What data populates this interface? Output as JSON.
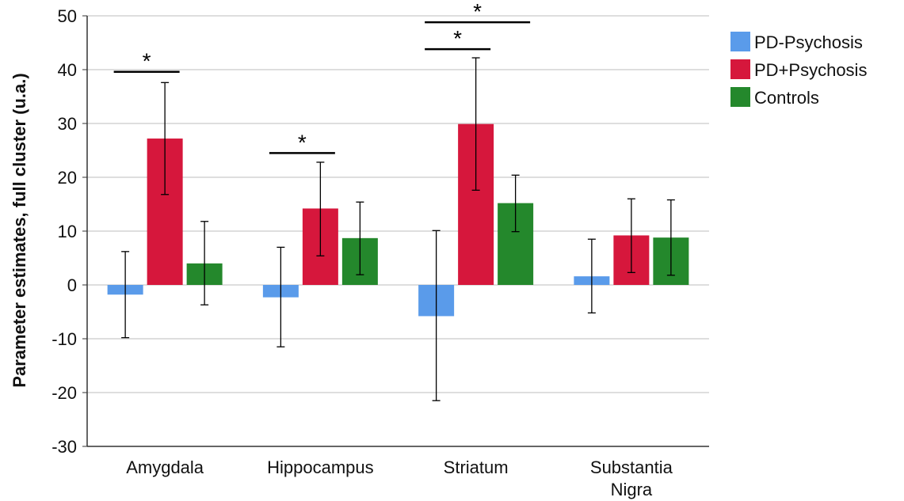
{
  "chart_data": {
    "type": "bar",
    "title": "",
    "xlabel": "",
    "ylabel": "Parameter estimates, full cluster (u.a.)",
    "ylim": [
      -30,
      50
    ],
    "yticks": [
      -30,
      -20,
      -10,
      0,
      10,
      20,
      30,
      40,
      50
    ],
    "grid": true,
    "legend_position": "right",
    "categories": [
      {
        "lines": [
          "Amygdala"
        ]
      },
      {
        "lines": [
          "Hippocampus"
        ]
      },
      {
        "lines": [
          "Striatum"
        ]
      },
      {
        "lines": [
          "Substantia",
          "Nigra"
        ]
      }
    ],
    "series": [
      {
        "name": "PD-Psychosis",
        "color": "#5a9bea",
        "values": [
          -1.8,
          -2.3,
          -5.8,
          1.6
        ],
        "err_low": [
          -9.8,
          -11.5,
          -21.5,
          -5.2
        ],
        "err_high": [
          6.2,
          7.0,
          10.1,
          8.5
        ]
      },
      {
        "name": "PD+Psychosis",
        "color": "#d6173c",
        "values": [
          27.2,
          14.2,
          29.9,
          9.2
        ],
        "err_low": [
          16.8,
          5.4,
          17.6,
          2.3
        ],
        "err_high": [
          37.6,
          22.8,
          42.2,
          16.0
        ]
      },
      {
        "name": "Controls",
        "color": "#24882c",
        "values": [
          4.0,
          8.7,
          15.2,
          8.8
        ],
        "err_low": [
          -3.7,
          1.9,
          9.9,
          1.8
        ],
        "err_high": [
          11.8,
          15.4,
          20.4,
          15.8
        ]
      }
    ],
    "annotations": [
      {
        "text": "*",
        "category": 0,
        "from_series": 0,
        "to_series": 1,
        "y": 39.6
      },
      {
        "text": "*",
        "category": 1,
        "from_series": 0,
        "to_series": 1,
        "y": 24.5
      },
      {
        "text": "*",
        "category": 2,
        "from_series": 0,
        "to_series": 1,
        "y": 43.8
      },
      {
        "text": "*",
        "category": 2,
        "from_series": 0,
        "to_series": 2,
        "y": 48.8
      }
    ]
  }
}
